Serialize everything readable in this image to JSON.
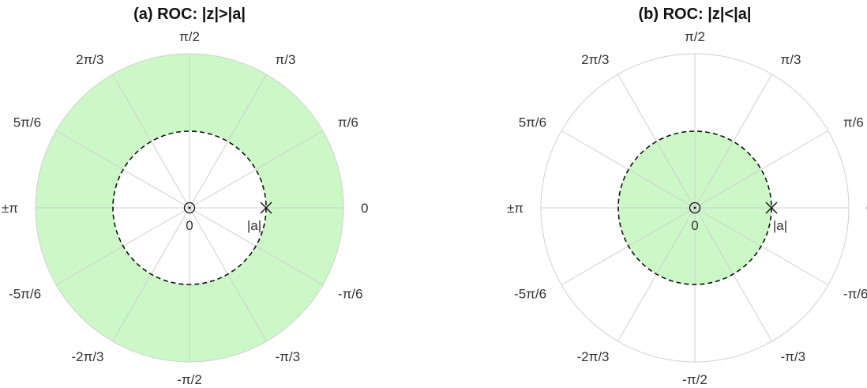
{
  "colors": {
    "roc_fill": "#ccf8c8",
    "grid": "#d0d0d0",
    "boundary": "#111111",
    "text": "#333333"
  },
  "polar_ticks": [
    "π/2",
    "π/3",
    "π/6",
    "0",
    "-π/6",
    "-π/3",
    "-π/2",
    "-2π/3",
    "-5π/6",
    "±π",
    "5π/6",
    "2π/3"
  ],
  "panels": [
    {
      "id": "a",
      "title": "(a) ROC: |z|>|a|",
      "roc": "outside",
      "zero_label": "0",
      "pole_label": "|a|",
      "zero_marker": "circle",
      "pole_marker": "x",
      "radius_ratio": 0.5
    },
    {
      "id": "b",
      "title": "(b) ROC: |z|<|a|",
      "roc": "inside",
      "zero_label": "0",
      "pole_label": "|a|",
      "zero_marker": "circle",
      "pole_marker": "x",
      "radius_ratio": 0.5
    }
  ]
}
